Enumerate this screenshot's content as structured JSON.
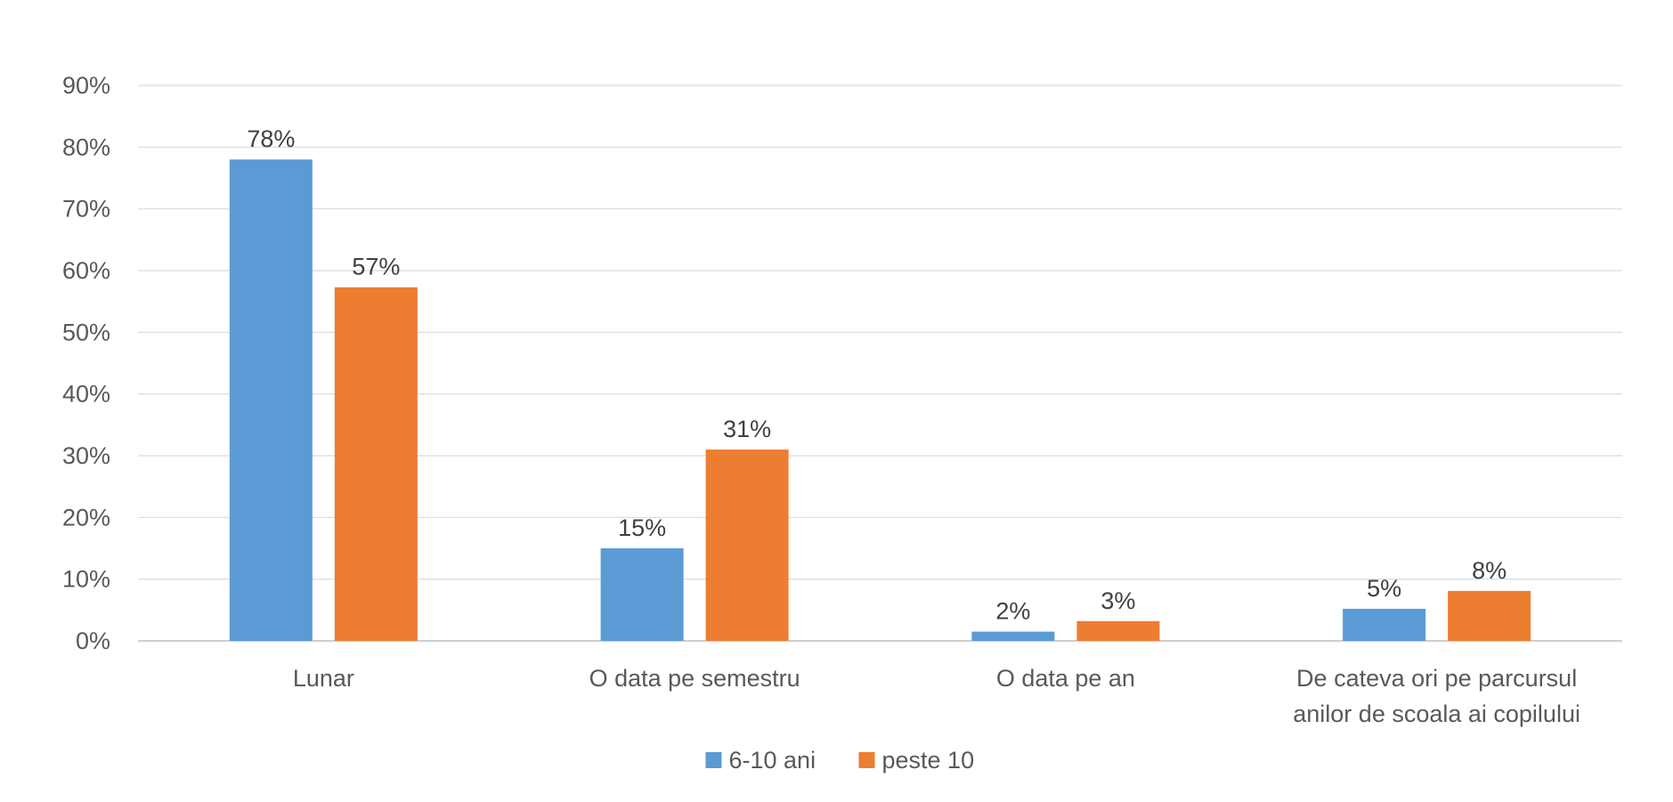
{
  "chart_data": {
    "type": "bar",
    "categories": [
      [
        "Lunar"
      ],
      [
        "O data pe semestru"
      ],
      [
        "O data pe an"
      ],
      [
        "De cateva ori pe parcursul",
        "anilor de scoala ai copilului"
      ]
    ],
    "series": [
      {
        "name": "6-10 ani",
        "color": "#5b9bd5",
        "values": [
          78,
          15,
          1.5,
          5.2
        ],
        "labels": [
          "78%",
          "15%",
          "2%",
          "5%"
        ]
      },
      {
        "name": "peste 10",
        "color": "#ed7d31",
        "values": [
          57.3,
          31,
          3.2,
          8.1
        ],
        "labels": [
          "57%",
          "31%",
          "3%",
          "8%"
        ]
      }
    ],
    "ylim": [
      0,
      90
    ],
    "yticks": [
      0,
      10,
      20,
      30,
      40,
      50,
      60,
      70,
      80,
      90
    ],
    "ytick_labels": [
      "0%",
      "10%",
      "20%",
      "30%",
      "40%",
      "50%",
      "60%",
      "70%",
      "80%",
      "90%"
    ],
    "grid": true,
    "gridline_color": "#d9d9d9",
    "legend": "bottom-center"
  }
}
